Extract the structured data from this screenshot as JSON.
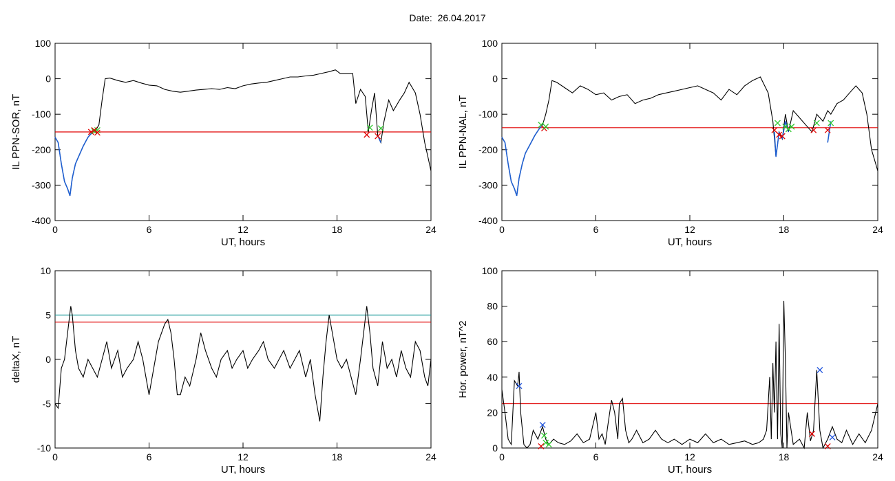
{
  "page": {
    "date_label": "Date:",
    "date_value": "26.04.2017",
    "title": "Date:  26.04.2017"
  },
  "colors": {
    "trace": "#000000",
    "highlight": "#1f5fd0",
    "threshold_red": "#e00000",
    "threshold_teal": "#1a9a9a",
    "marker_red": "#e00000",
    "marker_green": "#2ec82e",
    "marker_blue": "#2255dd"
  },
  "chart_data": [
    {
      "id": "p1",
      "type": "line",
      "xlabel": "UT, hours",
      "ylabel": "IL PPN-SOR, nT",
      "xlim": [
        0,
        24
      ],
      "ylim": [
        -400,
        100
      ],
      "xticks": [
        0,
        6,
        12,
        18,
        24
      ],
      "yticks": [
        100,
        0,
        -100,
        -200,
        -300,
        -400
      ],
      "series": [
        {
          "x": [
            0,
            0.2,
            0.4,
            0.6,
            0.8,
            0.95,
            1.1,
            1.3,
            1.5,
            1.8,
            2.1,
            2.4,
            2.6,
            2.8,
            3.0,
            3.2,
            3.5,
            4.0,
            4.5,
            5.0,
            5.5,
            6.0,
            6.5,
            7.0,
            7.5,
            8.0,
            8.5,
            9.0,
            9.5,
            10.0,
            10.5,
            11.0,
            11.5,
            12.0,
            12.5,
            13.0,
            13.5,
            14.0,
            14.5,
            15.0,
            15.5,
            16.0,
            16.5,
            17.0,
            17.5,
            17.9,
            18.2,
            18.5,
            19.0,
            19.2,
            19.5,
            19.8,
            20.0,
            20.2,
            20.4,
            20.6,
            20.8,
            21.0,
            21.3,
            21.6,
            22.0,
            22.3,
            22.6,
            23.0,
            23.3,
            23.6,
            23.8,
            24.0
          ],
          "y": [
            -165,
            -180,
            -240,
            -290,
            -310,
            -330,
            -280,
            -240,
            -220,
            -190,
            -165,
            -150,
            -145,
            -130,
            -60,
            0,
            2,
            -5,
            -10,
            -5,
            -12,
            -18,
            -20,
            -30,
            -35,
            -38,
            -35,
            -32,
            -30,
            -28,
            -30,
            -25,
            -28,
            -20,
            -15,
            -12,
            -10,
            -5,
            0,
            5,
            5,
            8,
            10,
            15,
            20,
            25,
            15,
            15,
            15,
            -70,
            -30,
            -50,
            -150,
            -90,
            -40,
            -160,
            -180,
            -120,
            -60,
            -90,
            -60,
            -40,
            -10,
            -40,
            -100,
            -180,
            -220,
            -260
          ]
        }
      ],
      "highlight_segments": [
        {
          "x": [
            0,
            0.2,
            0.4,
            0.6,
            0.8,
            0.95,
            1.1,
            1.3,
            1.5,
            1.8,
            2.1,
            2.4,
            2.6
          ],
          "y": [
            -165,
            -180,
            -240,
            -290,
            -310,
            -330,
            -280,
            -240,
            -220,
            -190,
            -165,
            -150,
            -145
          ]
        },
        {
          "x": [
            20.6,
            20.8
          ],
          "y": [
            -160,
            -180
          ]
        }
      ],
      "thresholds": [
        {
          "y": -150,
          "color": "#e00000"
        }
      ],
      "markers": [
        {
          "x": 2.3,
          "y": -150,
          "color": "#e00000"
        },
        {
          "x": 2.5,
          "y": -148,
          "color": "#2ec82e"
        },
        {
          "x": 2.7,
          "y": -145,
          "color": "#2ec82e"
        },
        {
          "x": 2.5,
          "y": -145,
          "color": "#e00000"
        },
        {
          "x": 2.7,
          "y": -152,
          "color": "#e00000"
        },
        {
          "x": 19.9,
          "y": -158,
          "color": "#e00000"
        },
        {
          "x": 20.1,
          "y": -138,
          "color": "#2ec82e"
        },
        {
          "x": 20.6,
          "y": -162,
          "color": "#e00000"
        },
        {
          "x": 20.8,
          "y": -140,
          "color": "#2ec82e"
        }
      ]
    },
    {
      "id": "p2",
      "type": "line",
      "xlabel": "UT, hours",
      "ylabel": "IL PPN-NAL, nT",
      "xlim": [
        0,
        24
      ],
      "ylim": [
        -400,
        100
      ],
      "xticks": [
        0,
        6,
        12,
        18,
        24
      ],
      "yticks": [
        100,
        0,
        -100,
        -200,
        -300,
        -400
      ],
      "series": [
        {
          "x": [
            0,
            0.2,
            0.4,
            0.6,
            0.8,
            0.95,
            1.1,
            1.3,
            1.5,
            1.8,
            2.1,
            2.4,
            2.6,
            2.8,
            3.0,
            3.2,
            3.5,
            4.0,
            4.5,
            5.0,
            5.5,
            6.0,
            6.5,
            7.0,
            7.5,
            8.0,
            8.5,
            9.0,
            9.5,
            10.0,
            10.5,
            11.0,
            11.5,
            12.0,
            12.5,
            13.0,
            13.5,
            14.0,
            14.5,
            15.0,
            15.5,
            16.0,
            16.5,
            17.0,
            17.3,
            17.5,
            17.7,
            17.9,
            18.1,
            18.3,
            18.6,
            19.0,
            19.4,
            19.8,
            20.1,
            20.5,
            20.8,
            21.0,
            21.4,
            21.8,
            22.2,
            22.6,
            23.0,
            23.3,
            23.6,
            23.8,
            24.0
          ],
          "y": [
            -165,
            -180,
            -240,
            -290,
            -310,
            -330,
            -280,
            -240,
            -210,
            -185,
            -160,
            -140,
            -130,
            -100,
            -60,
            -5,
            -10,
            -25,
            -40,
            -20,
            -30,
            -45,
            -40,
            -60,
            -50,
            -45,
            -70,
            -60,
            -55,
            -45,
            -40,
            -35,
            -30,
            -25,
            -20,
            -30,
            -40,
            -60,
            -30,
            -45,
            -20,
            -5,
            5,
            -40,
            -120,
            -220,
            -150,
            -170,
            -100,
            -150,
            -90,
            -110,
            -130,
            -150,
            -100,
            -120,
            -90,
            -100,
            -70,
            -60,
            -40,
            -20,
            -40,
            -100,
            -200,
            -230,
            -260
          ]
        }
      ],
      "highlight_segments": [
        {
          "x": [
            0,
            0.2,
            0.4,
            0.6,
            0.8,
            0.95,
            1.1,
            1.3,
            1.5,
            1.8,
            2.1,
            2.4,
            2.6
          ],
          "y": [
            -165,
            -180,
            -240,
            -290,
            -310,
            -330,
            -280,
            -240,
            -210,
            -185,
            -160,
            -140,
            -130
          ]
        },
        {
          "x": [
            17.4,
            17.5,
            17.7
          ],
          "y": [
            -150,
            -220,
            -150
          ]
        },
        {
          "x": [
            17.9,
            18.1,
            18.3
          ],
          "y": [
            -170,
            -120,
            -150
          ]
        },
        {
          "x": [
            20.8,
            21.0
          ],
          "y": [
            -180,
            -120
          ]
        }
      ],
      "thresholds": [
        {
          "y": -138,
          "color": "#e00000"
        }
      ],
      "markers": [
        {
          "x": 2.5,
          "y": -130,
          "color": "#2ec82e"
        },
        {
          "x": 2.7,
          "y": -140,
          "color": "#e00000"
        },
        {
          "x": 2.8,
          "y": -135,
          "color": "#2ec82e"
        },
        {
          "x": 17.4,
          "y": -145,
          "color": "#e00000"
        },
        {
          "x": 17.6,
          "y": -125,
          "color": "#2ec82e"
        },
        {
          "x": 17.7,
          "y": -158,
          "color": "#e00000"
        },
        {
          "x": 17.9,
          "y": -162,
          "color": "#e00000"
        },
        {
          "x": 18.1,
          "y": -135,
          "color": "#2ec82e"
        },
        {
          "x": 18.3,
          "y": -142,
          "color": "#2ec82e"
        },
        {
          "x": 18.5,
          "y": -135,
          "color": "#2ec82e"
        },
        {
          "x": 19.9,
          "y": -145,
          "color": "#e00000"
        },
        {
          "x": 20.1,
          "y": -125,
          "color": "#2ec82e"
        },
        {
          "x": 20.8,
          "y": -145,
          "color": "#e00000"
        },
        {
          "x": 21.0,
          "y": -125,
          "color": "#2ec82e"
        }
      ]
    },
    {
      "id": "p3",
      "type": "line",
      "xlabel": "UT, hours",
      "ylabel": "deltaX, nT",
      "xlim": [
        0,
        24
      ],
      "ylim": [
        -10,
        10
      ],
      "xticks": [
        0,
        6,
        12,
        18,
        24
      ],
      "yticks": [
        10,
        5,
        0,
        -5,
        -10
      ],
      "series": [
        {
          "x": [
            0,
            0.2,
            0.4,
            0.6,
            0.8,
            1.0,
            1.1,
            1.3,
            1.5,
            1.8,
            2.1,
            2.4,
            2.7,
            3.0,
            3.3,
            3.6,
            4.0,
            4.3,
            4.6,
            5.0,
            5.3,
            5.6,
            6.0,
            6.3,
            6.6,
            7.0,
            7.2,
            7.4,
            7.6,
            7.8,
            8.0,
            8.3,
            8.6,
            9.0,
            9.3,
            9.6,
            10.0,
            10.3,
            10.6,
            11.0,
            11.3,
            11.6,
            12.0,
            12.3,
            12.6,
            13.0,
            13.3,
            13.6,
            14.0,
            14.3,
            14.6,
            15.0,
            15.3,
            15.6,
            16.0,
            16.3,
            16.6,
            16.9,
            17.1,
            17.3,
            17.5,
            17.7,
            18.0,
            18.3,
            18.6,
            18.9,
            19.2,
            19.5,
            19.7,
            19.9,
            20.1,
            20.3,
            20.6,
            20.9,
            21.2,
            21.5,
            21.8,
            22.1,
            22.4,
            22.7,
            23.0,
            23.3,
            23.6,
            23.8,
            24.0
          ],
          "y": [
            -5,
            -5.5,
            -1,
            0,
            3,
            6,
            5,
            1,
            -1,
            -2,
            0,
            -1,
            -2,
            0,
            2,
            -1,
            1,
            -2,
            -1,
            0,
            2,
            0,
            -4,
            -1,
            2,
            4,
            4.5,
            3,
            0,
            -4,
            -4,
            -2,
            -3,
            0,
            3,
            1,
            -1,
            -2,
            0,
            1,
            -1,
            0,
            1,
            -1,
            0,
            1,
            2,
            0,
            -1,
            0,
            1,
            -1,
            0,
            1,
            -2,
            0,
            -4,
            -7,
            -2,
            2,
            5,
            3,
            0,
            -1,
            0,
            -2,
            -4,
            0,
            3,
            6,
            3,
            -1,
            -3,
            2,
            -1,
            0,
            -2,
            1,
            -1,
            -2,
            2,
            1,
            -2,
            -3,
            0
          ]
        }
      ],
      "highlight_segments": [],
      "thresholds": [
        {
          "y": 5,
          "color": "#1a9a9a"
        },
        {
          "y": 4.2,
          "color": "#e00000"
        }
      ],
      "markers": []
    },
    {
      "id": "p4",
      "type": "line",
      "xlabel": "UT, hours",
      "ylabel": "Hor. power, nT^2",
      "xlim": [
        0,
        24
      ],
      "ylim": [
        0,
        100
      ],
      "xticks": [
        0,
        6,
        12,
        18,
        24
      ],
      "yticks": [
        100,
        80,
        60,
        40,
        20,
        0
      ],
      "series": [
        {
          "x": [
            0,
            0.2,
            0.4,
            0.6,
            0.8,
            1.0,
            1.1,
            1.2,
            1.4,
            1.6,
            1.8,
            2.0,
            2.3,
            2.6,
            2.8,
            3.0,
            3.3,
            3.6,
            4.0,
            4.4,
            4.8,
            5.2,
            5.6,
            6.0,
            6.2,
            6.4,
            6.6,
            6.8,
            7.0,
            7.2,
            7.4,
            7.5,
            7.7,
            7.9,
            8.1,
            8.3,
            8.6,
            9.0,
            9.4,
            9.8,
            10.2,
            10.6,
            11.0,
            11.5,
            12.0,
            12.5,
            13.0,
            13.5,
            14.0,
            14.5,
            15.0,
            15.5,
            16.0,
            16.4,
            16.7,
            16.9,
            17.0,
            17.1,
            17.2,
            17.3,
            17.4,
            17.5,
            17.6,
            17.7,
            17.8,
            17.9,
            18.0,
            18.1,
            18.2,
            18.3,
            18.6,
            19.0,
            19.3,
            19.5,
            19.7,
            19.9,
            20.1,
            20.3,
            20.5,
            20.8,
            21.1,
            21.4,
            21.7,
            22.0,
            22.4,
            22.8,
            23.2,
            23.6,
            24.0
          ],
          "y": [
            33,
            20,
            5,
            2,
            38,
            35,
            43,
            20,
            2,
            0,
            2,
            10,
            5,
            12,
            5,
            2,
            5,
            3,
            2,
            4,
            8,
            3,
            5,
            20,
            5,
            8,
            2,
            15,
            27,
            20,
            5,
            25,
            28,
            10,
            3,
            5,
            10,
            3,
            5,
            10,
            5,
            3,
            5,
            2,
            5,
            3,
            8,
            3,
            5,
            2,
            3,
            4,
            2,
            3,
            5,
            10,
            25,
            40,
            5,
            48,
            20,
            60,
            5,
            70,
            8,
            0,
            83,
            50,
            0,
            20,
            2,
            5,
            0,
            20,
            4,
            10,
            44,
            10,
            0,
            5,
            12,
            5,
            3,
            10,
            2,
            8,
            3,
            10,
            25
          ]
        }
      ],
      "highlight_segments": [],
      "thresholds": [
        {
          "y": 25,
          "color": "#e00000"
        }
      ],
      "markers": [
        {
          "x": 1.1,
          "y": 35,
          "color": "#2255dd"
        },
        {
          "x": 2.6,
          "y": 13,
          "color": "#2255dd"
        },
        {
          "x": 2.7,
          "y": 7,
          "color": "#2ec82e"
        },
        {
          "x": 2.8,
          "y": 3,
          "color": "#2ec82e"
        },
        {
          "x": 3.0,
          "y": 2,
          "color": "#2ec82e"
        },
        {
          "x": 2.5,
          "y": 1,
          "color": "#e00000"
        },
        {
          "x": 19.8,
          "y": 8,
          "color": "#e00000"
        },
        {
          "x": 20.3,
          "y": 44,
          "color": "#2255dd"
        },
        {
          "x": 20.8,
          "y": 1,
          "color": "#e00000"
        },
        {
          "x": 21.1,
          "y": 6,
          "color": "#2255dd"
        }
      ]
    }
  ]
}
